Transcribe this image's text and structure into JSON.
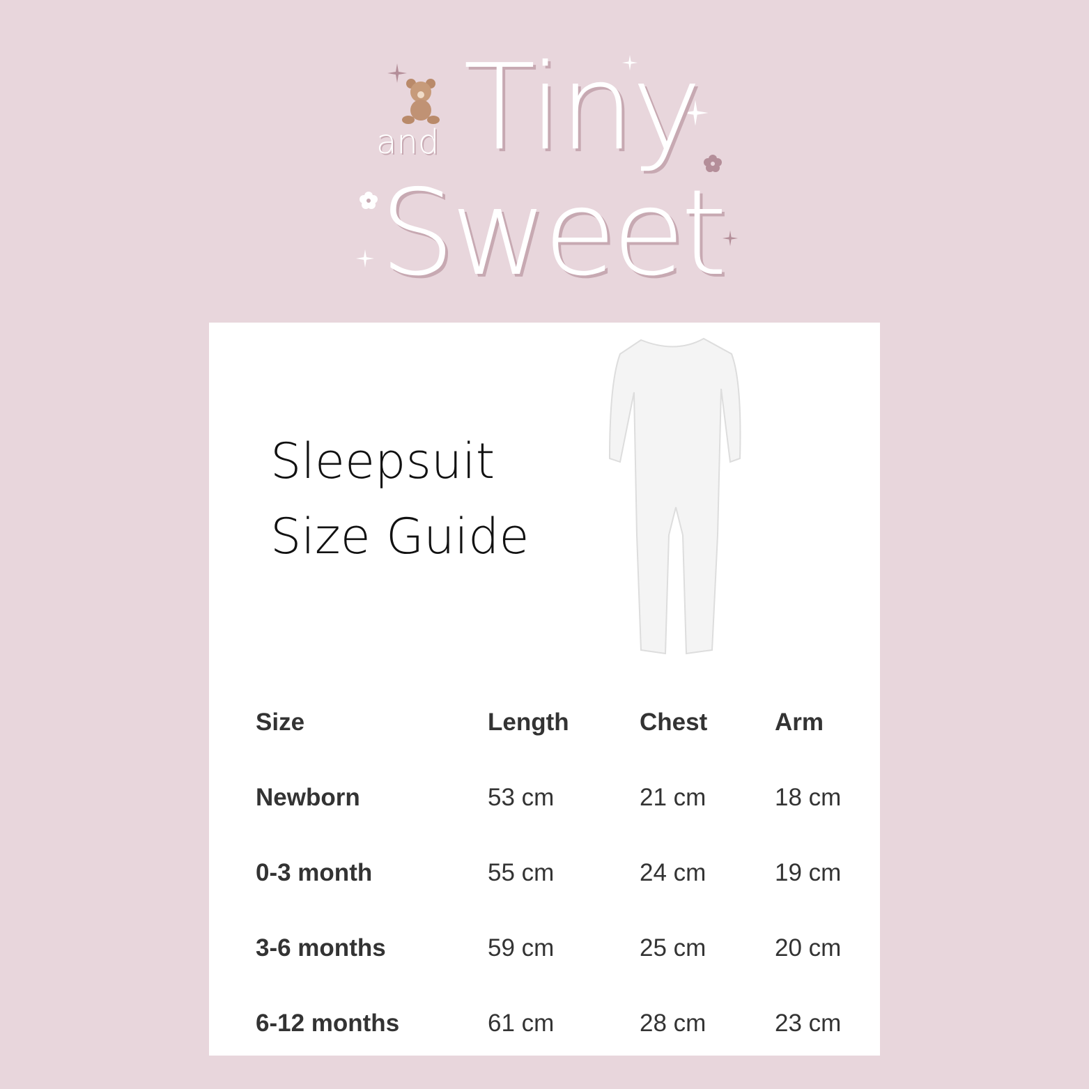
{
  "brand": {
    "logo_line1": "Tiny",
    "logo_and": "and",
    "logo_line2": "Sweet",
    "colors": {
      "background": "#e8d6dc",
      "logo_text": "#ffffff",
      "logo_shadow": "#c7a9b2"
    }
  },
  "guide": {
    "title_line1": "Sleepsuit",
    "title_line2": "Size Guide"
  },
  "table": {
    "headers": [
      "Size",
      "Length",
      "Chest",
      "Arm"
    ],
    "rows": [
      [
        "Newborn",
        "53 cm",
        "21 cm",
        "18 cm"
      ],
      [
        "0-3 month",
        "55 cm",
        "24 cm",
        "19 cm"
      ],
      [
        "3-6 months",
        "59 cm",
        "25 cm",
        "20 cm"
      ],
      [
        "6-12 months",
        "61 cm",
        "28 cm",
        "23 cm"
      ]
    ]
  }
}
